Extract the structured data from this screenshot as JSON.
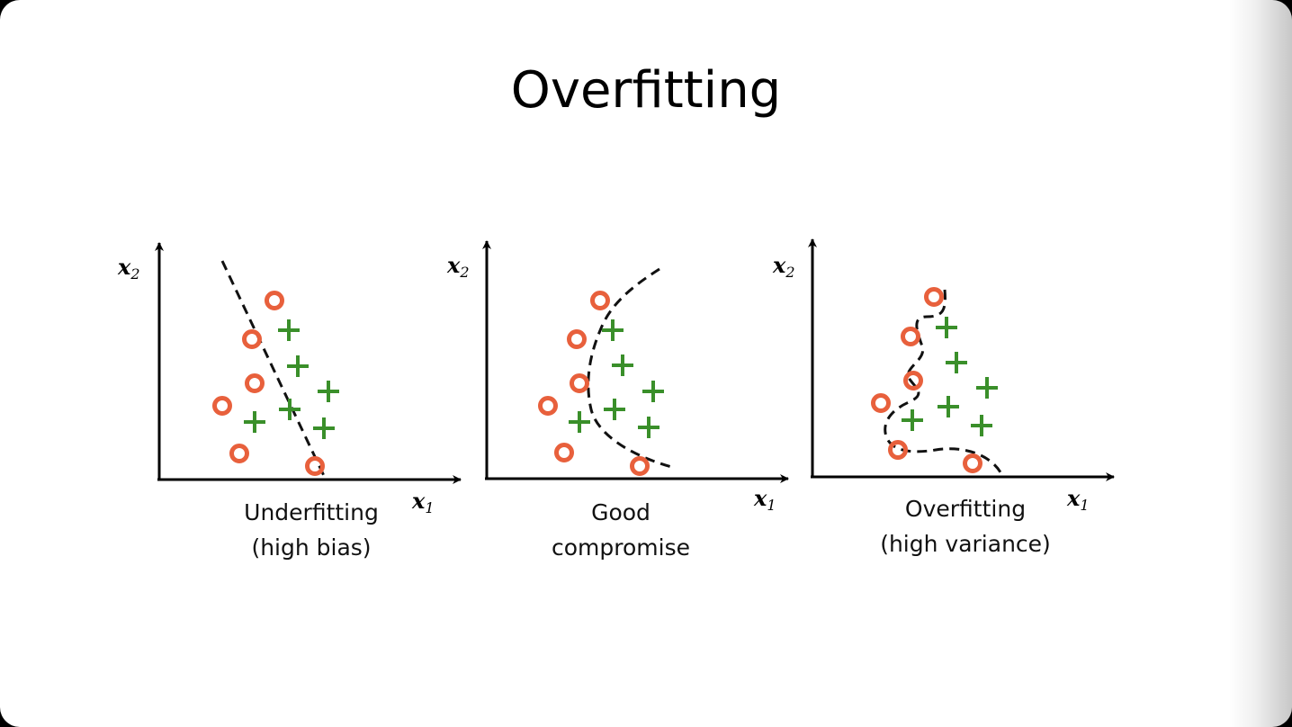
{
  "slide": {
    "title": "Overfitting"
  },
  "colors": {
    "circle": "#e8603c",
    "plus": "#3a8f2a",
    "boundary": "#111111",
    "axis": "#000000"
  },
  "panels": [
    {
      "id": "underfitting",
      "axis_x": {
        "name": "x",
        "sub": "1"
      },
      "axis_y": {
        "name": "x",
        "sub": "2"
      },
      "caption": [
        "Underfitting",
        "(high bias)"
      ],
      "boundary_style": "straight dashed line"
    },
    {
      "id": "good",
      "axis_x": {
        "name": "x",
        "sub": "1"
      },
      "axis_y": {
        "name": "x",
        "sub": "2"
      },
      "caption": [
        "Good",
        "compromise"
      ],
      "boundary_style": "smooth dashed curve"
    },
    {
      "id": "overfitting",
      "axis_x": {
        "name": "x",
        "sub": "1"
      },
      "axis_y": {
        "name": "x",
        "sub": "2"
      },
      "caption": [
        "Overfitting",
        "(high variance)"
      ],
      "boundary_style": "wiggly dashed curve"
    }
  ]
}
